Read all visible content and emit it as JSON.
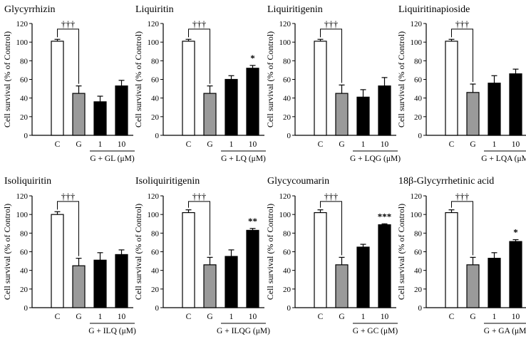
{
  "chart_data": [
    {
      "type": "bar",
      "title": "Glycyrrhizin",
      "ylabel": "Cell survival (% of Control)",
      "ylim": [
        0,
        120
      ],
      "yticks": [
        0,
        20,
        40,
        60,
        80,
        100,
        120
      ],
      "categories": [
        "C",
        "G",
        "1",
        "10"
      ],
      "group_label": "G + GL (μM)",
      "values": [
        101,
        45,
        36,
        53
      ],
      "errors": [
        2,
        8,
        6,
        6
      ],
      "fills": [
        "#ffffff",
        "#9a9a9a",
        "#000000",
        "#000000"
      ],
      "dagger": "†††",
      "significance": [
        "",
        "",
        "",
        ""
      ]
    },
    {
      "type": "bar",
      "title": "Liquiritin",
      "ylabel": "Cell survival (% of Control)",
      "ylim": [
        0,
        120
      ],
      "yticks": [
        0,
        20,
        40,
        60,
        80,
        100,
        120
      ],
      "categories": [
        "C",
        "G",
        "1",
        "10"
      ],
      "group_label": "G + LQ (μM)",
      "values": [
        101,
        45,
        60,
        72
      ],
      "errors": [
        2,
        8,
        4,
        3
      ],
      "fills": [
        "#ffffff",
        "#9a9a9a",
        "#000000",
        "#000000"
      ],
      "dagger": "†††",
      "significance": [
        "",
        "",
        "",
        "*"
      ]
    },
    {
      "type": "bar",
      "title": "Liquiritigenin",
      "ylabel": "Cell survival (% of Control)",
      "ylim": [
        0,
        120
      ],
      "yticks": [
        0,
        20,
        40,
        60,
        80,
        100,
        120
      ],
      "categories": [
        "C",
        "G",
        "1",
        "10"
      ],
      "group_label": "G + LQG (μM)",
      "values": [
        101,
        45,
        41,
        53
      ],
      "errors": [
        2,
        9,
        8,
        9
      ],
      "fills": [
        "#ffffff",
        "#9a9a9a",
        "#000000",
        "#000000"
      ],
      "dagger": "†††",
      "significance": [
        "",
        "",
        "",
        ""
      ]
    },
    {
      "type": "bar",
      "title": "Liquiritinapioside",
      "ylabel": "Cell survival (% of Control)",
      "ylim": [
        0,
        120
      ],
      "yticks": [
        0,
        20,
        40,
        60,
        80,
        100,
        120
      ],
      "categories": [
        "C",
        "G",
        "1",
        "10"
      ],
      "group_label": "G + LQA (μM)",
      "values": [
        101,
        46,
        56,
        66
      ],
      "errors": [
        2,
        9,
        8,
        5
      ],
      "fills": [
        "#ffffff",
        "#9a9a9a",
        "#000000",
        "#000000"
      ],
      "dagger": "†††",
      "significance": [
        "",
        "",
        "",
        ""
      ]
    },
    {
      "type": "bar",
      "title": "Isoliquiritin",
      "ylabel": "Cell survival (% of Control)",
      "ylim": [
        0,
        120
      ],
      "yticks": [
        0,
        20,
        40,
        60,
        80,
        100,
        120
      ],
      "categories": [
        "C",
        "G",
        "1",
        "10"
      ],
      "group_label": "G + ILQ (μM)",
      "values": [
        100,
        45,
        51,
        57
      ],
      "errors": [
        3,
        8,
        8,
        5
      ],
      "fills": [
        "#ffffff",
        "#9a9a9a",
        "#000000",
        "#000000"
      ],
      "dagger": "†††",
      "significance": [
        "",
        "",
        "",
        ""
      ]
    },
    {
      "type": "bar",
      "title": "Isoliquiritigenin",
      "ylabel": "Cell survival (% of Control)",
      "ylim": [
        0,
        120
      ],
      "yticks": [
        0,
        20,
        40,
        60,
        80,
        100,
        120
      ],
      "categories": [
        "C",
        "G",
        "1",
        "10"
      ],
      "group_label": "G + ILQG (μM)",
      "values": [
        102,
        46,
        55,
        83
      ],
      "errors": [
        3,
        8,
        7,
        2
      ],
      "fills": [
        "#ffffff",
        "#9a9a9a",
        "#000000",
        "#000000"
      ],
      "dagger": "†††",
      "significance": [
        "",
        "",
        "",
        "**"
      ]
    },
    {
      "type": "bar",
      "title": "Glycycoumarin",
      "ylabel": "Cell survival (% of Control)",
      "ylim": [
        0,
        120
      ],
      "yticks": [
        0,
        20,
        40,
        60,
        80,
        100,
        120
      ],
      "categories": [
        "C",
        "G",
        "1",
        "10"
      ],
      "group_label": "G + GC (μM)",
      "values": [
        102,
        46,
        65,
        89
      ],
      "errors": [
        3,
        8,
        3,
        1
      ],
      "fills": [
        "#ffffff",
        "#9a9a9a",
        "#000000",
        "#000000"
      ],
      "dagger": "†††",
      "significance": [
        "",
        "",
        "",
        "***"
      ]
    },
    {
      "type": "bar",
      "title": "18β-Glycyrrhetinic acid",
      "ylabel": "Cell survival (% of Control)",
      "ylim": [
        0,
        120
      ],
      "yticks": [
        0,
        20,
        40,
        60,
        80,
        100,
        120
      ],
      "categories": [
        "C",
        "G",
        "1",
        "10"
      ],
      "group_label": "G + GA (μM)",
      "values": [
        102,
        46,
        53,
        71
      ],
      "errors": [
        3,
        8,
        6,
        2
      ],
      "fills": [
        "#ffffff",
        "#9a9a9a",
        "#000000",
        "#000000"
      ],
      "dagger": "†††",
      "significance": [
        "",
        "",
        "",
        "*"
      ]
    }
  ]
}
